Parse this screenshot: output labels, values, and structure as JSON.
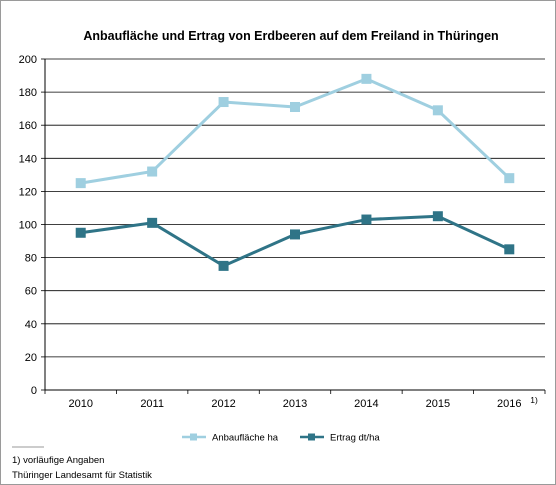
{
  "chart_data": {
    "type": "line",
    "title": "Anbaufläche und Ertrag von Erdbeeren auf dem Freiland in Thüringen",
    "xlabel": "",
    "ylabel": "",
    "categories": [
      "2010",
      "2011",
      "2012",
      "2013",
      "2014",
      "2015",
      "2016"
    ],
    "last_category_footnote": "1)",
    "ylim": [
      0,
      200
    ],
    "yticks": [
      0,
      20,
      40,
      60,
      80,
      100,
      120,
      140,
      160,
      180,
      200
    ],
    "grid": true,
    "legend_position": "bottom",
    "series": [
      {
        "name": "Anbaufläche ha",
        "color": "#9fcfe0",
        "values": [
          125,
          132,
          174,
          171,
          188,
          169,
          128
        ]
      },
      {
        "name": "Ertrag dt/ha",
        "color": "#2f7487",
        "values": [
          95,
          101,
          75,
          94,
          103,
          105,
          85
        ]
      }
    ]
  },
  "footnote": "1) vorläufige Angaben",
  "source": "Thüringer Landesamt für Statistik"
}
